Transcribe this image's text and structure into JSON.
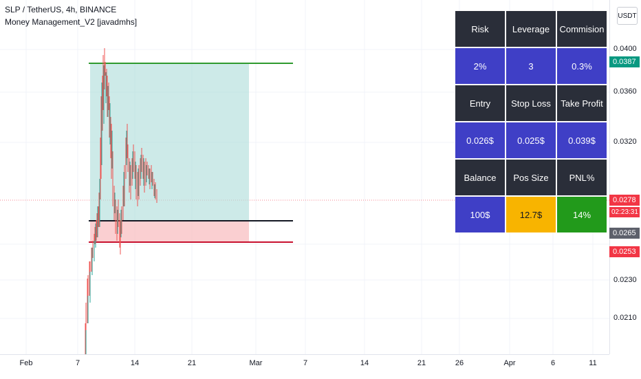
{
  "header": {
    "symbol": "SLP / TetherUS, 4h, BINANCE",
    "indicator": "Money Management_V2 [javadmhs]"
  },
  "currency_button": "USDT",
  "price_axis": {
    "ticks": [
      "0.0400",
      "0.0360",
      "0.0320",
      "0.0230",
      "0.0210"
    ],
    "labels": [
      {
        "text": "0.0387",
        "color": "#089981"
      },
      {
        "text": "0.0278",
        "color": "#f23645"
      },
      {
        "text": "02:23:31",
        "color": "#f23645"
      },
      {
        "text": "0.0265",
        "color": "#5d606b"
      },
      {
        "text": "0.0253",
        "color": "#f23645"
      }
    ]
  },
  "time_axis": {
    "ticks": [
      "Feb",
      "7",
      "14",
      "21",
      "Mar",
      "7",
      "14",
      "21",
      "26",
      "Apr",
      "6",
      "11"
    ]
  },
  "table": {
    "rows": [
      [
        {
          "text": "Risk",
          "style": "dark"
        },
        {
          "text": "Leverage",
          "style": "dark"
        },
        {
          "text": "Commision",
          "style": "dark"
        }
      ],
      [
        {
          "text": "2%",
          "style": "blue"
        },
        {
          "text": "3",
          "style": "blue"
        },
        {
          "text": "0.3%",
          "style": "blue"
        }
      ],
      [
        {
          "text": "Entry",
          "style": "dark"
        },
        {
          "text": "Stop Loss",
          "style": "dark"
        },
        {
          "text": "Take Profit",
          "style": "dark"
        }
      ],
      [
        {
          "text": "0.026$",
          "style": "blue"
        },
        {
          "text": "0.025$",
          "style": "blue"
        },
        {
          "text": "0.039$",
          "style": "blue"
        }
      ],
      [
        {
          "text": "Balance",
          "style": "dark"
        },
        {
          "text": "Pos Size",
          "style": "dark"
        },
        {
          "text": "PNL%",
          "style": "dark"
        }
      ],
      [
        {
          "text": "100$",
          "style": "blue"
        },
        {
          "text": "12.7$",
          "style": "orange"
        },
        {
          "text": "14%",
          "style": "green"
        }
      ]
    ]
  },
  "chart_levels": {
    "take_profit": 0.0387,
    "entry": 0.0265,
    "stop_loss": 0.0253,
    "last_price": 0.0278
  }
}
